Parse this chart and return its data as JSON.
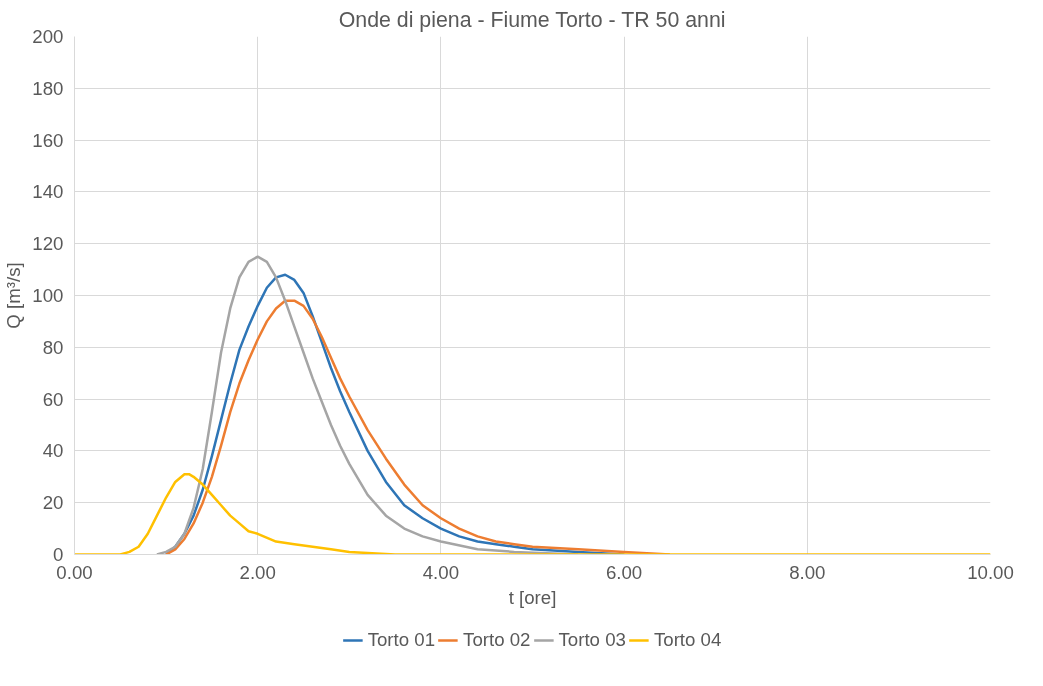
{
  "chart_data": {
    "type": "line",
    "title": "Onde di piena - Fiume Torto - TR 50 anni",
    "xlabel": "t [ore]",
    "ylabel": "Q [m³/s]",
    "xlim": [
      0,
      10
    ],
    "ylim": [
      0,
      200
    ],
    "xticks": [
      {
        "value": 0,
        "label": "0.00"
      },
      {
        "value": 2,
        "label": "2.00"
      },
      {
        "value": 4,
        "label": "4.00"
      },
      {
        "value": 6,
        "label": "6.00"
      },
      {
        "value": 8,
        "label": "8.00"
      },
      {
        "value": 10,
        "label": "10.00"
      }
    ],
    "yticks": [
      0,
      20,
      40,
      60,
      80,
      100,
      120,
      140,
      160,
      180,
      200
    ],
    "grid": true,
    "legend": "bottom",
    "marker": "none",
    "line_style": "solid",
    "series": [
      {
        "name": "Torto 01",
        "color": "#2e75b6",
        "x": [
          1.0,
          1.1,
          1.2,
          1.3,
          1.4,
          1.5,
          1.6,
          1.7,
          1.8,
          1.9,
          2.0,
          2.1,
          2.2,
          2.3,
          2.4,
          2.5,
          2.6,
          2.7,
          2.8,
          2.9,
          3.0,
          3.2,
          3.4,
          3.6,
          3.8,
          4.0,
          4.2,
          4.4,
          4.6,
          4.8,
          5.0,
          5.5,
          6.0
        ],
        "values": [
          0,
          3,
          8,
          15,
          25,
          38,
          52,
          66,
          79,
          88,
          96,
          103,
          107,
          108,
          106,
          101,
          92,
          82,
          72,
          63,
          55,
          40,
          28,
          19,
          14,
          10,
          7,
          5,
          4,
          3,
          2,
          1,
          0
        ]
      },
      {
        "name": "Torto 02",
        "color": "#ed7d31",
        "x": [
          1.0,
          1.1,
          1.2,
          1.3,
          1.4,
          1.5,
          1.6,
          1.7,
          1.8,
          1.9,
          2.0,
          2.1,
          2.2,
          2.3,
          2.4,
          2.5,
          2.6,
          2.7,
          2.8,
          2.9,
          3.0,
          3.2,
          3.4,
          3.6,
          3.8,
          4.0,
          4.2,
          4.4,
          4.6,
          4.8,
          5.0,
          5.5,
          6.0,
          6.5
        ],
        "values": [
          0,
          2,
          6,
          12,
          20,
          30,
          42,
          55,
          66,
          75,
          83,
          90,
          95,
          98,
          98,
          96,
          91,
          84,
          76,
          68,
          61,
          48,
          37,
          27,
          19,
          14,
          10,
          7,
          5,
          4,
          3,
          2,
          1,
          0
        ]
      },
      {
        "name": "Torto 03",
        "color": "#a5a5a5",
        "x": [
          0.9,
          1.0,
          1.1,
          1.2,
          1.3,
          1.4,
          1.5,
          1.6,
          1.7,
          1.8,
          1.9,
          2.0,
          2.1,
          2.2,
          2.3,
          2.4,
          2.5,
          2.6,
          2.7,
          2.8,
          2.9,
          3.0,
          3.2,
          3.4,
          3.6,
          3.8,
          4.0,
          4.4,
          4.8,
          5.5
        ],
        "values": [
          0,
          1,
          3,
          8,
          18,
          33,
          55,
          78,
          95,
          107,
          113,
          115,
          113,
          107,
          98,
          88,
          78,
          68,
          59,
          50,
          42,
          35,
          23,
          15,
          10,
          7,
          5,
          2,
          1,
          0
        ]
      },
      {
        "name": "Torto 04",
        "color": "#ffc000",
        "x": [
          0,
          0.5,
          0.6,
          0.7,
          0.8,
          0.9,
          1.0,
          1.1,
          1.2,
          1.25,
          1.3,
          1.4,
          1.5,
          1.6,
          1.7,
          1.8,
          1.9,
          2.0,
          2.2,
          2.4,
          2.6,
          2.8,
          3.0,
          3.5,
          4.0,
          10
        ],
        "values": [
          0,
          0,
          1,
          3,
          8,
          15,
          22,
          28,
          31,
          31,
          30,
          27,
          23,
          19,
          15,
          12,
          9,
          8,
          5,
          4,
          3,
          2,
          1,
          0,
          0,
          0
        ]
      }
    ]
  }
}
